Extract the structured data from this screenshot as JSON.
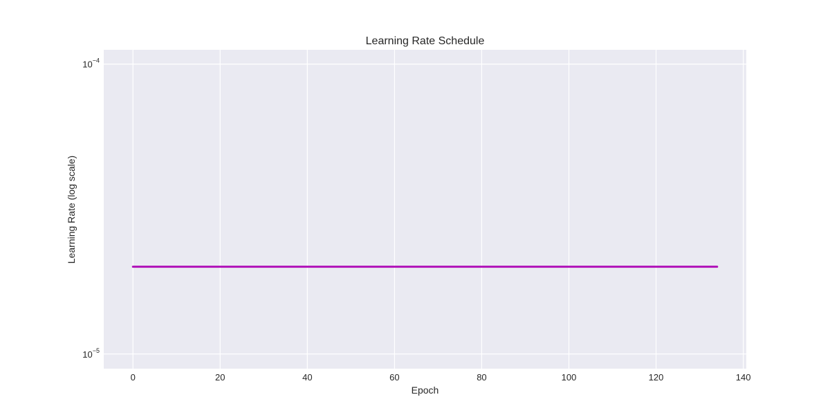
{
  "chart_data": {
    "type": "line",
    "title": "Learning Rate Schedule",
    "xlabel": "Epoch",
    "ylabel": "Learning Rate (log scale)",
    "x_ticks": [
      0,
      20,
      40,
      60,
      80,
      100,
      120,
      140
    ],
    "y_ticks": [
      {
        "value": 1e-05,
        "base": "10",
        "exp": "−5"
      },
      {
        "value": 0.0001,
        "base": "10",
        "exp": "−4"
      }
    ],
    "xlim": [
      -6.7,
      140.7
    ],
    "ylim": [
      8.9e-06,
      0.000112
    ],
    "yscale": "log",
    "grid": true,
    "series": [
      {
        "color": "#b010b8",
        "x": [
          0,
          134
        ],
        "y": [
          2e-05,
          2e-05
        ]
      }
    ]
  }
}
